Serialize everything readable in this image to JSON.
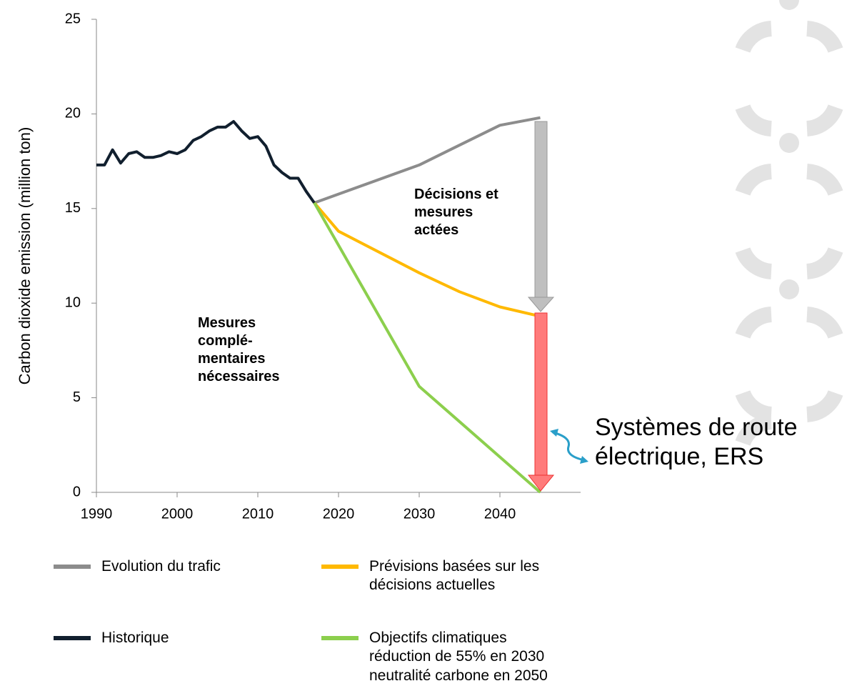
{
  "chart_data": {
    "type": "line",
    "ylabel": "Carbon dioxide emission (million ton)",
    "xlim": [
      1990,
      2050
    ],
    "xticks": [
      1990,
      2000,
      2010,
      2020,
      2030,
      2040
    ],
    "ylim": [
      0,
      25
    ],
    "yticks": [
      0,
      5,
      10,
      15,
      20,
      25
    ],
    "series": [
      {
        "name": "Evolution du trafic",
        "color": "#8c8c8c",
        "x": [
          2017,
          2030,
          2040,
          2045
        ],
        "values": [
          15.3,
          17.3,
          19.4,
          19.8
        ]
      },
      {
        "name": "Prévisions basées sur les\ndécisions actuelles",
        "color": "#ffb900",
        "x": [
          2017,
          2020,
          2030,
          2035,
          2040,
          2045
        ],
        "values": [
          15.3,
          13.8,
          11.6,
          10.6,
          9.8,
          9.3
        ]
      },
      {
        "name": "Historique",
        "color": "#111f2e",
        "x": [
          1990,
          1991,
          1992,
          1993,
          1994,
          1995,
          1996,
          1997,
          1998,
          1999,
          2000,
          2001,
          2002,
          2003,
          2004,
          2005,
          2006,
          2007,
          2008,
          2009,
          2010,
          2011,
          2012,
          2013,
          2014,
          2015,
          2016,
          2017
        ],
        "values": [
          17.3,
          17.3,
          18.1,
          17.4,
          17.9,
          18.0,
          17.7,
          17.7,
          17.8,
          18.0,
          17.9,
          18.1,
          18.6,
          18.8,
          19.1,
          19.3,
          19.3,
          19.6,
          19.1,
          18.7,
          18.8,
          18.3,
          17.3,
          16.9,
          16.6,
          16.6,
          15.9,
          15.3
        ]
      },
      {
        "name": "Objectifs climatiques\nréduction de 55% en 2030\nneutralité carbone en 2050",
        "color": "#8ccf4d",
        "x": [
          2017,
          2030,
          2045
        ],
        "values": [
          15.3,
          5.6,
          0
        ]
      }
    ],
    "annotations": [
      "Décisions et\nmesures\nactées",
      "Mesures\ncomplé-\nmentaires\nnécessaires",
      "Systèmes de route\nélectrique, ERS"
    ]
  }
}
